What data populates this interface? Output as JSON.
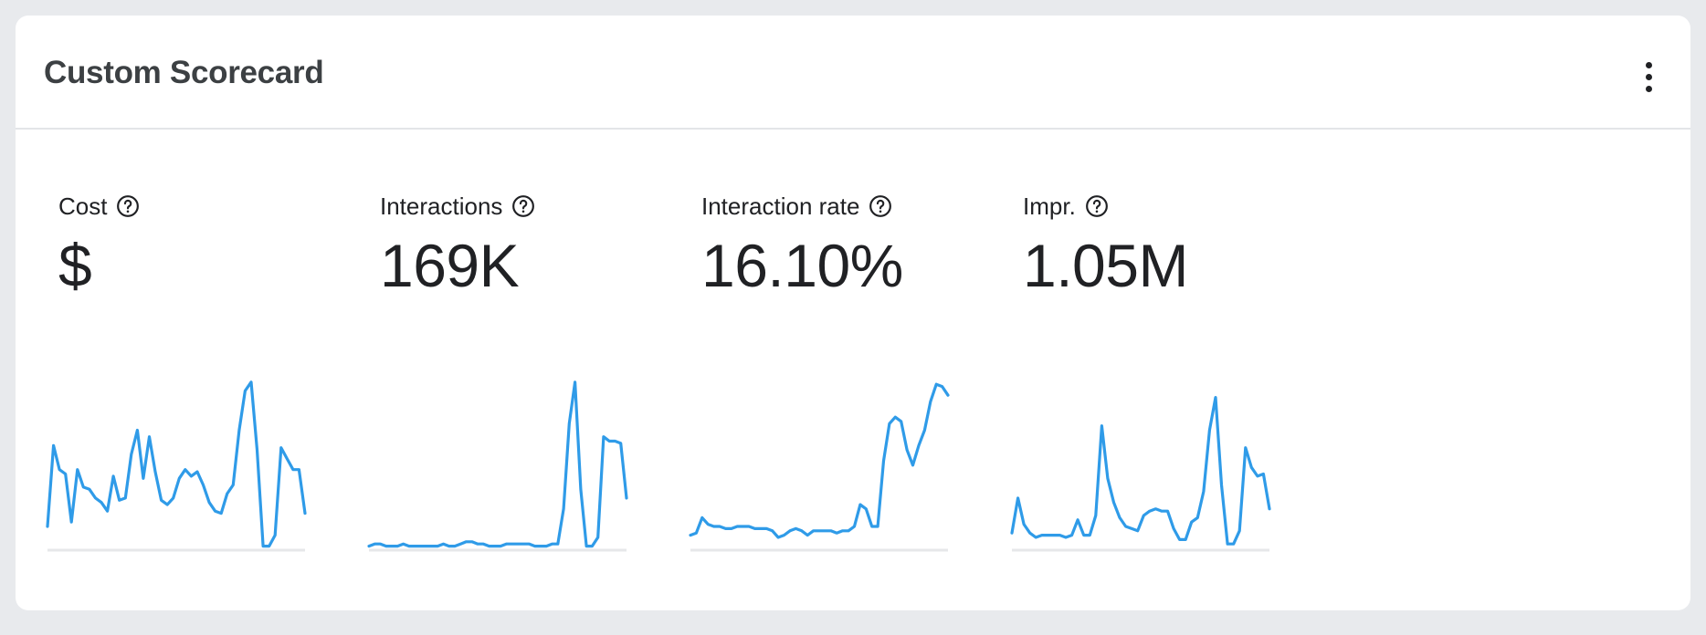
{
  "card": {
    "title": "Custom Scorecard",
    "menu_icon": "more-vert-icon"
  },
  "colors": {
    "sparkline": "#2f9be8",
    "baseline": "#e6e7e9",
    "text": "#202124"
  },
  "metrics": [
    {
      "label": "Cost",
      "value": "$",
      "icon": "help-circle-icon",
      "trend": [
        0.1,
        0.47,
        0.36,
        0.34,
        0.12,
        0.36,
        0.28,
        0.27,
        0.23,
        0.21,
        0.17,
        0.33,
        0.22,
        0.23,
        0.43,
        0.54,
        0.32,
        0.51,
        0.35,
        0.22,
        0.2,
        0.23,
        0.32,
        0.36,
        0.33,
        0.35,
        0.29,
        0.21,
        0.17,
        0.16,
        0.25,
        0.29,
        0.54,
        0.72,
        0.76,
        0.45,
        0.01,
        0.01,
        0.06,
        0.46,
        0.41,
        0.36,
        0.36,
        0.16
      ]
    },
    {
      "label": "Interactions",
      "value": "169K",
      "icon": "help-circle-icon",
      "trend": [
        0.01,
        0.02,
        0.02,
        0.01,
        0.01,
        0.01,
        0.02,
        0.01,
        0.01,
        0.01,
        0.01,
        0.01,
        0.01,
        0.02,
        0.01,
        0.01,
        0.02,
        0.03,
        0.03,
        0.02,
        0.02,
        0.01,
        0.01,
        0.01,
        0.02,
        0.02,
        0.02,
        0.02,
        0.02,
        0.01,
        0.01,
        0.01,
        0.02,
        0.02,
        0.18,
        0.57,
        0.76,
        0.27,
        0.01,
        0.01,
        0.05,
        0.51,
        0.49,
        0.49,
        0.48,
        0.23
      ]
    },
    {
      "label": "Interaction rate",
      "value": "16.10%",
      "icon": "help-circle-icon",
      "trend": [
        0.06,
        0.07,
        0.14,
        0.11,
        0.1,
        0.1,
        0.09,
        0.09,
        0.1,
        0.1,
        0.1,
        0.09,
        0.09,
        0.09,
        0.08,
        0.05,
        0.06,
        0.08,
        0.09,
        0.08,
        0.06,
        0.08,
        0.08,
        0.08,
        0.08,
        0.07,
        0.08,
        0.08,
        0.1,
        0.2,
        0.18,
        0.1,
        0.1,
        0.4,
        0.57,
        0.6,
        0.58,
        0.45,
        0.38,
        0.47,
        0.54,
        0.67,
        0.75,
        0.74,
        0.7
      ]
    },
    {
      "label": "Impr.",
      "value": "1.05M",
      "icon": "help-circle-icon",
      "trend": [
        0.07,
        0.23,
        0.11,
        0.07,
        0.05,
        0.06,
        0.06,
        0.06,
        0.06,
        0.05,
        0.06,
        0.13,
        0.06,
        0.06,
        0.15,
        0.56,
        0.32,
        0.21,
        0.14,
        0.1,
        0.09,
        0.08,
        0.15,
        0.17,
        0.18,
        0.17,
        0.17,
        0.09,
        0.04,
        0.04,
        0.12,
        0.14,
        0.26,
        0.54,
        0.69,
        0.29,
        0.02,
        0.02,
        0.08,
        0.46,
        0.37,
        0.33,
        0.34,
        0.18
      ]
    }
  ]
}
